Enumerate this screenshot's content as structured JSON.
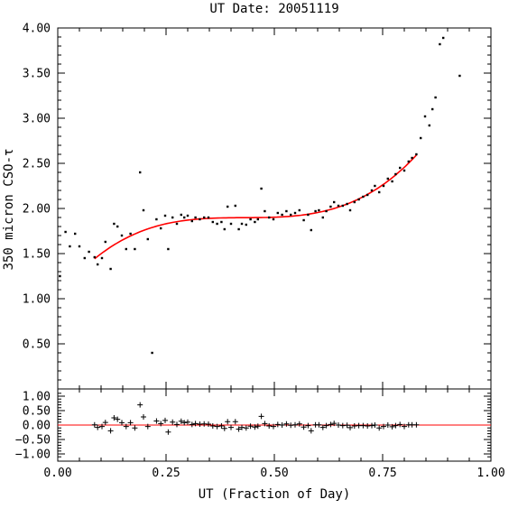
{
  "chart_data": {
    "type": "scatter",
    "title": "UT Date: 20051119",
    "xlabel": "UT (Fraction of Day)",
    "ylabel": "350 micron CSO-τ",
    "xlim": [
      0.0,
      1.0
    ],
    "ylim": [
      0.0,
      4.0
    ],
    "resid_ylim": [
      -1.25,
      1.25
    ],
    "grid": false,
    "xticks": [
      "0.00",
      "0.25",
      "0.50",
      "0.75",
      "1.00"
    ],
    "xtick_values": [
      0.0,
      0.25,
      0.5,
      0.75,
      1.0
    ],
    "yticks": [
      "0.50",
      "1.00",
      "1.50",
      "2.00",
      "2.50",
      "3.00",
      "3.50",
      "4.00"
    ],
    "ytick_values": [
      0.5,
      1.0,
      1.5,
      2.0,
      2.5,
      3.0,
      3.5,
      4.0
    ],
    "resid_yticks": [
      "1.00",
      "0.50",
      "0.00",
      "−0.50",
      "−1.00"
    ],
    "resid_ytick_values": [
      1.0,
      0.5,
      0.0,
      -0.5,
      -1.0
    ],
    "colors": {
      "points": "#000000",
      "fit": "#ff0000",
      "axes": "#000000"
    },
    "points": [
      [
        0.005,
        1.25
      ],
      [
        0.018,
        1.74
      ],
      [
        0.028,
        1.58
      ],
      [
        0.04,
        1.72
      ],
      [
        0.05,
        1.58
      ],
      [
        0.062,
        1.45
      ],
      [
        0.072,
        1.52
      ],
      [
        0.085,
        1.46
      ],
      [
        0.092,
        1.38
      ],
      [
        0.102,
        1.45
      ],
      [
        0.11,
        1.63
      ],
      [
        0.122,
        1.33
      ],
      [
        0.13,
        1.83
      ],
      [
        0.138,
        1.8
      ],
      [
        0.148,
        1.7
      ],
      [
        0.158,
        1.55
      ],
      [
        0.168,
        1.72
      ],
      [
        0.178,
        1.55
      ],
      [
        0.19,
        2.4
      ],
      [
        0.198,
        1.98
      ],
      [
        0.208,
        1.66
      ],
      [
        0.218,
        0.4
      ],
      [
        0.228,
        1.88
      ],
      [
        0.238,
        1.78
      ],
      [
        0.248,
        1.92
      ],
      [
        0.255,
        1.55
      ],
      [
        0.265,
        1.9
      ],
      [
        0.275,
        1.83
      ],
      [
        0.285,
        1.93
      ],
      [
        0.292,
        1.9
      ],
      [
        0.3,
        1.92
      ],
      [
        0.31,
        1.86
      ],
      [
        0.318,
        1.9
      ],
      [
        0.328,
        1.88
      ],
      [
        0.338,
        1.9
      ],
      [
        0.348,
        1.9
      ],
      [
        0.358,
        1.85
      ],
      [
        0.368,
        1.83
      ],
      [
        0.378,
        1.85
      ],
      [
        0.385,
        1.77
      ],
      [
        0.392,
        2.02
      ],
      [
        0.4,
        1.83
      ],
      [
        0.41,
        2.03
      ],
      [
        0.418,
        1.77
      ],
      [
        0.425,
        1.83
      ],
      [
        0.435,
        1.82
      ],
      [
        0.445,
        1.88
      ],
      [
        0.455,
        1.85
      ],
      [
        0.462,
        1.88
      ],
      [
        0.47,
        2.22
      ],
      [
        0.478,
        1.97
      ],
      [
        0.488,
        1.9
      ],
      [
        0.498,
        1.88
      ],
      [
        0.508,
        1.95
      ],
      [
        0.518,
        1.93
      ],
      [
        0.528,
        1.97
      ],
      [
        0.538,
        1.93
      ],
      [
        0.548,
        1.95
      ],
      [
        0.558,
        1.98
      ],
      [
        0.568,
        1.87
      ],
      [
        0.578,
        1.93
      ],
      [
        0.585,
        1.76
      ],
      [
        0.595,
        1.97
      ],
      [
        0.603,
        1.98
      ],
      [
        0.612,
        1.9
      ],
      [
        0.62,
        1.97
      ],
      [
        0.63,
        2.02
      ],
      [
        0.638,
        2.07
      ],
      [
        0.648,
        2.03
      ],
      [
        0.658,
        2.03
      ],
      [
        0.668,
        2.05
      ],
      [
        0.675,
        1.98
      ],
      [
        0.685,
        2.07
      ],
      [
        0.695,
        2.1
      ],
      [
        0.705,
        2.13
      ],
      [
        0.715,
        2.15
      ],
      [
        0.725,
        2.2
      ],
      [
        0.732,
        2.25
      ],
      [
        0.742,
        2.18
      ],
      [
        0.752,
        2.25
      ],
      [
        0.762,
        2.33
      ],
      [
        0.772,
        2.3
      ],
      [
        0.78,
        2.38
      ],
      [
        0.79,
        2.45
      ],
      [
        0.8,
        2.42
      ],
      [
        0.81,
        2.52
      ],
      [
        0.818,
        2.56
      ],
      [
        0.828,
        2.6
      ],
      [
        0.838,
        2.78
      ],
      [
        0.848,
        3.02
      ],
      [
        0.858,
        2.92
      ],
      [
        0.865,
        3.1
      ],
      [
        0.872,
        3.23
      ],
      [
        0.882,
        3.82
      ],
      [
        0.89,
        3.89
      ],
      [
        0.928,
        3.47
      ]
    ],
    "fit_range": [
      0.085,
      0.828
    ],
    "residuals": [
      [
        0.085,
        0.01
      ],
      [
        0.092,
        -0.08
      ],
      [
        0.102,
        -0.05
      ],
      [
        0.11,
        0.09
      ],
      [
        0.122,
        -0.2
      ],
      [
        0.13,
        0.25
      ],
      [
        0.138,
        0.2
      ],
      [
        0.148,
        0.08
      ],
      [
        0.158,
        -0.05
      ],
      [
        0.168,
        0.08
      ],
      [
        0.178,
        -0.1
      ],
      [
        0.19,
        0.7
      ],
      [
        0.198,
        0.28
      ],
      [
        0.208,
        -0.05
      ],
      [
        0.228,
        0.14
      ],
      [
        0.238,
        0.05
      ],
      [
        0.248,
        0.16
      ],
      [
        0.255,
        -0.24
      ],
      [
        0.265,
        0.1
      ],
      [
        0.275,
        0.02
      ],
      [
        0.285,
        0.13
      ],
      [
        0.292,
        0.08
      ],
      [
        0.3,
        0.1
      ],
      [
        0.31,
        0.02
      ],
      [
        0.318,
        0.05
      ],
      [
        0.328,
        0.03
      ],
      [
        0.338,
        0.04
      ],
      [
        0.348,
        0.03
      ],
      [
        0.358,
        -0.03
      ],
      [
        0.368,
        -0.05
      ],
      [
        0.378,
        -0.03
      ],
      [
        0.385,
        -0.12
      ],
      [
        0.392,
        0.12
      ],
      [
        0.4,
        -0.08
      ],
      [
        0.41,
        0.12
      ],
      [
        0.418,
        -0.14
      ],
      [
        0.425,
        -0.08
      ],
      [
        0.435,
        -0.1
      ],
      [
        0.445,
        -0.04
      ],
      [
        0.455,
        -0.07
      ],
      [
        0.462,
        -0.04
      ],
      [
        0.47,
        0.3
      ],
      [
        0.478,
        0.05
      ],
      [
        0.488,
        -0.03
      ],
      [
        0.498,
        -0.05
      ],
      [
        0.508,
        0.02
      ],
      [
        0.518,
        0.0
      ],
      [
        0.528,
        0.04
      ],
      [
        0.538,
        -0.01
      ],
      [
        0.548,
        0.01
      ],
      [
        0.558,
        0.04
      ],
      [
        0.568,
        -0.07
      ],
      [
        0.578,
        -0.02
      ],
      [
        0.585,
        -0.2
      ],
      [
        0.595,
        0.01
      ],
      [
        0.603,
        0.01
      ],
      [
        0.612,
        -0.08
      ],
      [
        0.62,
        -0.02
      ],
      [
        0.63,
        0.02
      ],
      [
        0.638,
        0.06
      ],
      [
        0.648,
        0.0
      ],
      [
        0.658,
        -0.02
      ],
      [
        0.668,
        -0.01
      ],
      [
        0.675,
        -0.09
      ],
      [
        0.685,
        -0.03
      ],
      [
        0.695,
        -0.02
      ],
      [
        0.705,
        -0.02
      ],
      [
        0.715,
        -0.03
      ],
      [
        0.725,
        -0.02
      ],
      [
        0.732,
        0.0
      ],
      [
        0.742,
        -0.1
      ],
      [
        0.752,
        -0.05
      ],
      [
        0.762,
        0.0
      ],
      [
        0.772,
        -0.06
      ],
      [
        0.78,
        -0.02
      ],
      [
        0.79,
        0.02
      ],
      [
        0.8,
        -0.05
      ],
      [
        0.81,
        0.01
      ],
      [
        0.818,
        0.01
      ],
      [
        0.828,
        0.01
      ]
    ]
  }
}
